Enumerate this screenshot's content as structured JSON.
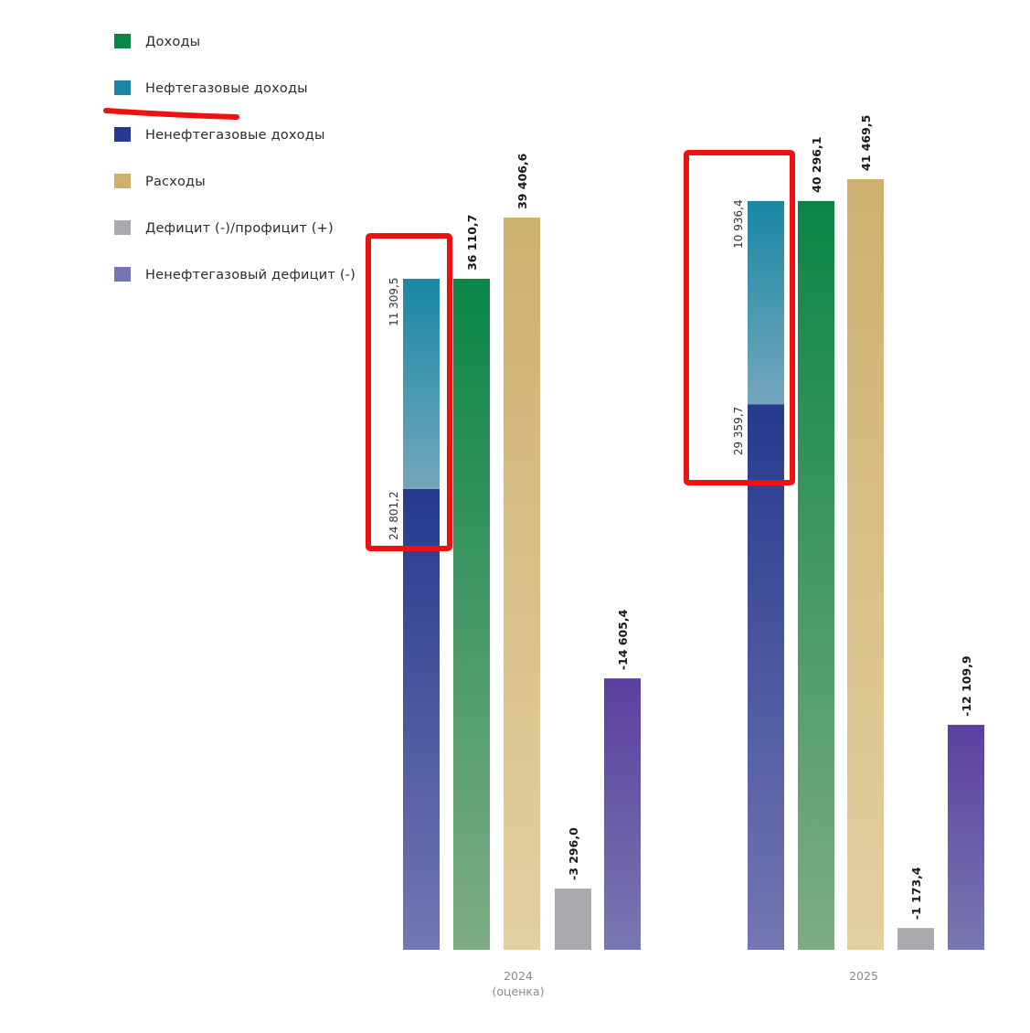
{
  "legend": {
    "items": [
      {
        "label": "Доходы",
        "color": "#0b8547"
      },
      {
        "label": "Нефтегазовые доходы",
        "color": "#1a87a3"
      },
      {
        "label": "Ненефтегазовые доходы",
        "color": "#27398c"
      },
      {
        "label": "Расходы",
        "color": "#cdb06f"
      },
      {
        "label": "Дефицит (-)/профицит (+)",
        "color": "#a9aaae"
      },
      {
        "label": "Ненефтегазовый дефицит (-)",
        "color": "#7475b1"
      }
    ]
  },
  "chart_data": {
    "type": "bar",
    "categories": [
      {
        "label": "2024",
        "sublabel": "(оценка)"
      },
      {
        "label": "2025",
        "sublabel": ""
      }
    ],
    "series": [
      {
        "name": "Нефтегазовые доходы",
        "values": [
          11309.5,
          10936.4
        ],
        "value_labels": [
          "11 309,5",
          "10 936,4"
        ],
        "stacked_on": "Ненефтегазовые доходы",
        "color": "#1a87a3"
      },
      {
        "name": "Ненефтегазовые доходы",
        "values": [
          24801.2,
          29359.7
        ],
        "value_labels": [
          "24 801,2",
          "29 359,7"
        ],
        "color": "#27398c"
      },
      {
        "name": "Доходы",
        "values": [
          36110.7,
          40296.1
        ],
        "value_labels": [
          "36 110,7",
          "40 296,1"
        ],
        "color": "#0b8547"
      },
      {
        "name": "Расходы",
        "values": [
          39406.6,
          41469.5
        ],
        "value_labels": [
          "39 406,6",
          "41 469,5"
        ],
        "color": "#cdb06f"
      },
      {
        "name": "Дефицит (-)/профицит (+)",
        "values": [
          -3296.0,
          -1173.4
        ],
        "value_labels": [
          "-3 296,0",
          "-1 173,4"
        ],
        "color": "#a9aaae"
      },
      {
        "name": "Ненефтегазовый дефицит (-)",
        "values": [
          -14605.4,
          -12109.9
        ],
        "value_labels": [
          "-14 605,4",
          "-12 109,9"
        ],
        "color": "#7475b1"
      }
    ],
    "ylim": [
      0,
      41469.5
    ],
    "grid": false,
    "legend_position": "top-left",
    "annotations": [
      {
        "type": "rectangle",
        "around": "2024 oil-gas and non-oil-gas stacked bar",
        "color": "#ee1111"
      },
      {
        "type": "rectangle",
        "around": "2025 oil-gas and non-oil-gas stacked bar",
        "color": "#ee1111"
      },
      {
        "type": "underline",
        "under": "Нефтегазовые доходы legend label",
        "color": "#ee1111"
      }
    ]
  }
}
